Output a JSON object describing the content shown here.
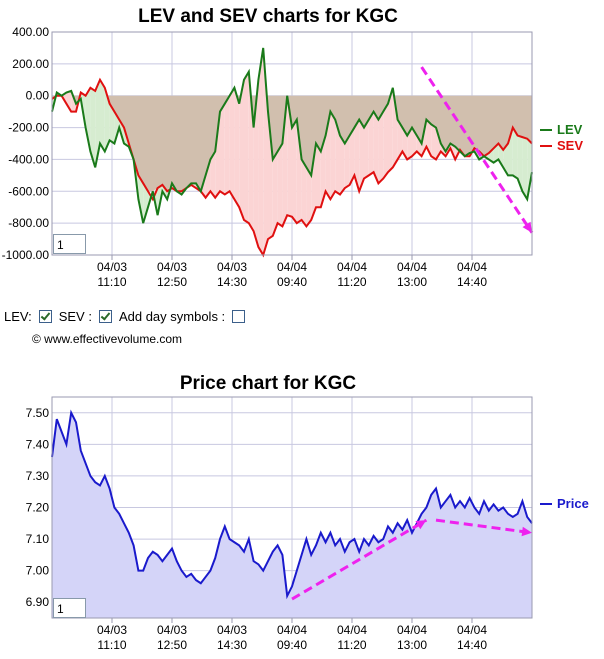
{
  "chart_data": [
    {
      "type": "line",
      "title": "LEV and SEV charts for KGC",
      "ylim": [
        -1000,
        400
      ],
      "yticks": [
        "400.00",
        "200.00",
        "0.00",
        "-200.00",
        "-400.00",
        "-600.00",
        "-800.00",
        "-1000.00"
      ],
      "yticks_values": [
        400,
        200,
        0,
        -200,
        -400,
        -600,
        -800,
        -1000
      ],
      "xticks": [
        {
          "date": "04/03",
          "time": "11:10"
        },
        {
          "date": "04/03",
          "time": "12:50"
        },
        {
          "date": "04/03",
          "time": "14:30"
        },
        {
          "date": "04/04",
          "time": "09:40"
        },
        {
          "date": "04/04",
          "time": "11:20"
        },
        {
          "date": "04/04",
          "time": "13:00"
        },
        {
          "date": "04/04",
          "time": "14:40"
        }
      ],
      "x_range": [
        0,
        100
      ],
      "xticks_values": [
        12.5,
        25,
        37.5,
        50,
        62.5,
        75,
        87.5
      ],
      "grid": true,
      "legend_placement": "right",
      "zoom_value": "1",
      "series": [
        {
          "name": "LEV",
          "color": "#1a7a1a",
          "x": [
            0,
            1,
            2,
            3,
            4,
            5,
            6,
            7,
            8,
            9,
            10,
            11,
            12,
            13,
            14,
            15,
            16,
            17,
            18,
            19,
            20,
            21,
            22,
            23,
            24,
            25,
            26,
            27,
            28,
            29,
            30,
            31,
            32,
            33,
            34,
            35,
            36,
            37,
            38,
            39,
            40,
            41,
            42,
            43,
            44,
            45,
            46,
            47,
            48,
            49,
            50,
            51,
            52,
            53,
            54,
            55,
            56,
            57,
            58,
            59,
            60,
            61,
            62,
            63,
            64,
            65,
            66,
            67,
            68,
            69,
            70,
            71,
            72,
            73,
            74,
            75,
            76,
            77,
            78,
            79,
            80,
            81,
            82,
            83,
            84,
            85,
            86,
            87,
            88,
            89,
            90,
            91,
            92,
            93,
            94,
            95,
            96,
            97,
            98,
            99,
            100
          ],
          "values": [
            -100,
            20,
            0,
            20,
            30,
            -50,
            -20,
            -200,
            -350,
            -450,
            -300,
            -350,
            -280,
            -300,
            -200,
            -300,
            -320,
            -400,
            -650,
            -800,
            -700,
            -600,
            -750,
            -600,
            -650,
            -550,
            -600,
            -620,
            -580,
            -550,
            -550,
            -600,
            -500,
            -400,
            -350,
            -100,
            -50,
            0,
            50,
            -50,
            100,
            150,
            -200,
            100,
            300,
            -100,
            -400,
            -350,
            -300,
            0,
            -200,
            -150,
            -400,
            -450,
            -500,
            -300,
            -350,
            -250,
            -100,
            -150,
            -250,
            -300,
            -250,
            -200,
            -150,
            -200,
            -150,
            -100,
            -150,
            -100,
            -50,
            50,
            -150,
            -200,
            -250,
            -200,
            -250,
            -300,
            -150,
            -180,
            -200,
            -300,
            -350,
            -300,
            -320,
            -350,
            -380,
            -360,
            -350,
            -400,
            -380,
            -400,
            -420,
            -400,
            -450,
            -500,
            -500,
            -520,
            -600,
            -650,
            -480
          ]
        },
        {
          "name": "SEV",
          "color": "#e01010",
          "x": [
            0,
            1,
            2,
            3,
            4,
            5,
            6,
            7,
            8,
            9,
            10,
            11,
            12,
            13,
            14,
            15,
            16,
            17,
            18,
            19,
            20,
            21,
            22,
            23,
            24,
            25,
            26,
            27,
            28,
            29,
            30,
            31,
            32,
            33,
            34,
            35,
            36,
            37,
            38,
            39,
            40,
            41,
            42,
            43,
            44,
            45,
            46,
            47,
            48,
            49,
            50,
            51,
            52,
            53,
            54,
            55,
            56,
            57,
            58,
            59,
            60,
            61,
            62,
            63,
            64,
            65,
            66,
            67,
            68,
            69,
            70,
            71,
            72,
            73,
            74,
            75,
            76,
            77,
            78,
            79,
            80,
            81,
            82,
            83,
            84,
            85,
            86,
            87,
            88,
            89,
            90,
            91,
            92,
            93,
            94,
            95,
            96,
            97,
            98,
            99,
            100
          ],
          "values": [
            -20,
            0,
            0,
            -50,
            -100,
            -100,
            20,
            0,
            50,
            30,
            100,
            50,
            -50,
            -100,
            -150,
            -200,
            -300,
            -400,
            -500,
            -550,
            -600,
            -650,
            -580,
            -560,
            -600,
            -580,
            -600,
            -600,
            -580,
            -560,
            -580,
            -600,
            -640,
            -600,
            -640,
            -600,
            -620,
            -600,
            -650,
            -700,
            -780,
            -800,
            -850,
            -950,
            -1000,
            -900,
            -880,
            -800,
            -820,
            -750,
            -760,
            -800,
            -780,
            -820,
            -780,
            -700,
            -700,
            -600,
            -650,
            -600,
            -620,
            -580,
            -560,
            -500,
            -600,
            -520,
            -500,
            -480,
            -550,
            -520,
            -480,
            -450,
            -400,
            -350,
            -400,
            -380,
            -350,
            -380,
            -320,
            -380,
            -400,
            -350,
            -380,
            -330,
            -400,
            -340,
            -380,
            -380,
            -330,
            -350,
            -380,
            -360,
            -330,
            -300,
            -340,
            -300,
            -200,
            -250,
            -260,
            -270,
            -300
          ]
        }
      ],
      "annotation_arrow": {
        "color": "#ee22ee",
        "from": [
          77,
          60
        ],
        "to": [
          100,
          -280
        ],
        "from_y_value": 180,
        "to_y_value": -860
      }
    },
    {
      "type": "area",
      "title": "Price chart for KGC",
      "ylim": [
        6.85,
        7.55
      ],
      "yticks": [
        "7.50",
        "7.40",
        "7.30",
        "7.20",
        "7.10",
        "7.00",
        "6.90"
      ],
      "yticks_values": [
        7.5,
        7.4,
        7.3,
        7.2,
        7.1,
        7.0,
        6.9
      ],
      "xticks": [
        {
          "date": "04/03",
          "time": "11:10"
        },
        {
          "date": "04/03",
          "time": "12:50"
        },
        {
          "date": "04/03",
          "time": "14:30"
        },
        {
          "date": "04/04",
          "time": "09:40"
        },
        {
          "date": "04/04",
          "time": "11:20"
        },
        {
          "date": "04/04",
          "time": "13:00"
        },
        {
          "date": "04/04",
          "time": "14:40"
        }
      ],
      "x_range": [
        0,
        100
      ],
      "xticks_values": [
        12.5,
        25,
        37.5,
        50,
        62.5,
        75,
        87.5
      ],
      "grid": true,
      "legend_placement": "right",
      "zoom_value": "1",
      "series": [
        {
          "name": "Price",
          "color": "#1a1acc",
          "fill": "#d4d4f8",
          "x": [
            0,
            1,
            2,
            3,
            4,
            5,
            6,
            7,
            8,
            9,
            10,
            11,
            12,
            13,
            14,
            15,
            16,
            17,
            18,
            19,
            20,
            21,
            22,
            23,
            24,
            25,
            26,
            27,
            28,
            29,
            30,
            31,
            32,
            33,
            34,
            35,
            36,
            37,
            38,
            39,
            40,
            41,
            42,
            43,
            44,
            45,
            46,
            47,
            48,
            49,
            50,
            51,
            52,
            53,
            54,
            55,
            56,
            57,
            58,
            59,
            60,
            61,
            62,
            63,
            64,
            65,
            66,
            67,
            68,
            69,
            70,
            71,
            72,
            73,
            74,
            75,
            76,
            77,
            78,
            79,
            80,
            81,
            82,
            83,
            84,
            85,
            86,
            87,
            88,
            89,
            90,
            91,
            92,
            93,
            94,
            95,
            96,
            97,
            98,
            99,
            100
          ],
          "values": [
            7.36,
            7.48,
            7.44,
            7.4,
            7.5,
            7.47,
            7.38,
            7.34,
            7.3,
            7.28,
            7.27,
            7.3,
            7.26,
            7.2,
            7.18,
            7.15,
            7.12,
            7.08,
            7.0,
            7.0,
            7.04,
            7.06,
            7.05,
            7.03,
            7.05,
            7.07,
            7.03,
            7.0,
            6.98,
            6.99,
            6.97,
            6.96,
            6.98,
            7.0,
            7.04,
            7.1,
            7.14,
            7.1,
            7.09,
            7.08,
            7.06,
            7.1,
            7.03,
            7.02,
            7.0,
            7.03,
            7.06,
            7.08,
            7.05,
            6.92,
            6.95,
            7.0,
            7.05,
            7.1,
            7.05,
            7.08,
            7.12,
            7.09,
            7.12,
            7.08,
            7.1,
            7.06,
            7.09,
            7.1,
            7.06,
            7.1,
            7.08,
            7.11,
            7.09,
            7.1,
            7.14,
            7.12,
            7.15,
            7.13,
            7.16,
            7.12,
            7.15,
            7.18,
            7.2,
            7.24,
            7.26,
            7.2,
            7.22,
            7.24,
            7.2,
            7.22,
            7.2,
            7.23,
            7.2,
            7.18,
            7.22,
            7.19,
            7.21,
            7.19,
            7.2,
            7.18,
            7.17,
            7.18,
            7.22,
            7.17,
            7.15
          ]
        }
      ],
      "annotation_arrows": [
        {
          "color": "#ee22ee",
          "from": [
            50,
            6.91
          ],
          "to": [
            78,
            7.16
          ]
        },
        {
          "color": "#ee22ee",
          "from": [
            80,
            7.16
          ],
          "to": [
            100,
            7.12
          ]
        }
      ]
    }
  ],
  "controls": {
    "lev_label": "LEV:",
    "lev_checked": true,
    "sev_label": "SEV :",
    "sev_checked": true,
    "day_symbols_label": "Add day symbols :",
    "day_symbols_checked": false
  },
  "footer": {
    "copyright": "© www.effectivevolume.com"
  }
}
